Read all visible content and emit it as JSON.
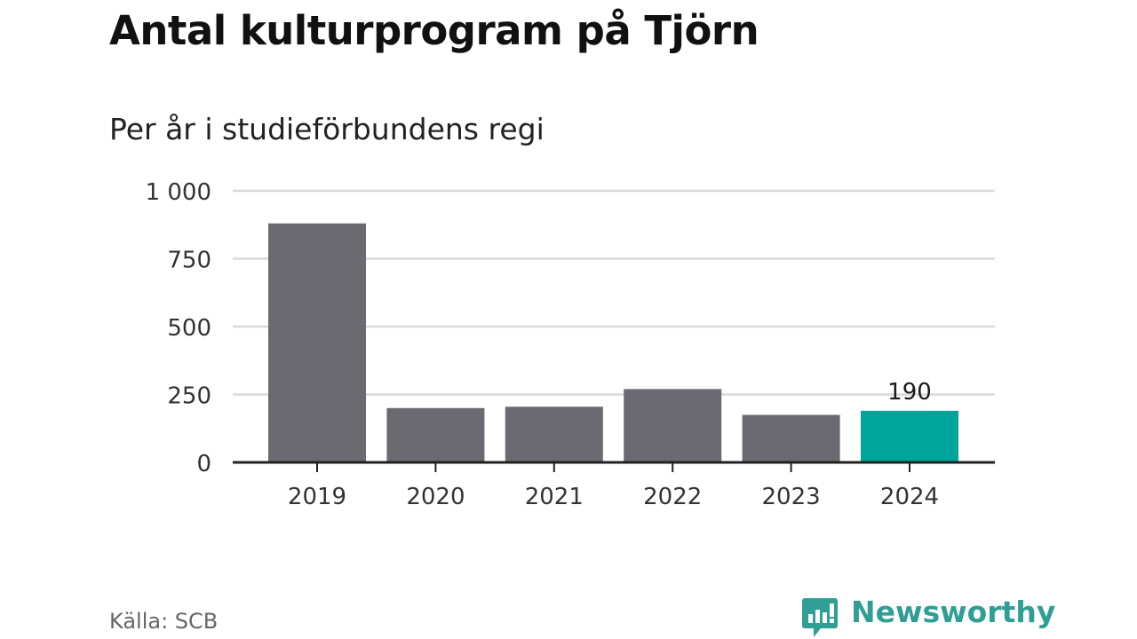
{
  "chart_data": {
    "type": "bar",
    "title": "Antal kulturprogram på Tjörn",
    "subtitle": "Per år i studieförbundens regi",
    "categories": [
      "2019",
      "2020",
      "2021",
      "2022",
      "2023",
      "2024"
    ],
    "values": [
      880,
      200,
      205,
      270,
      175,
      190
    ],
    "highlight_index": 5,
    "highlight_label": "190",
    "ylim": [
      0,
      1000
    ],
    "yticks": [
      0,
      250,
      500,
      750,
      1000
    ],
    "ytick_labels": [
      "0",
      "250",
      "500",
      "750",
      "1 000"
    ],
    "xlabel": "",
    "ylabel": "",
    "grid": true,
    "colors": {
      "bar": "#6b6a71",
      "highlight": "#00a59a",
      "grid": "#d9d9d9",
      "axis": "#222222"
    }
  },
  "footer": {
    "source": "Källa: SCB",
    "brand": "Newsworthy",
    "brand_icon": "newsworthy-logo-icon",
    "brand_color": "#2f9e94"
  }
}
